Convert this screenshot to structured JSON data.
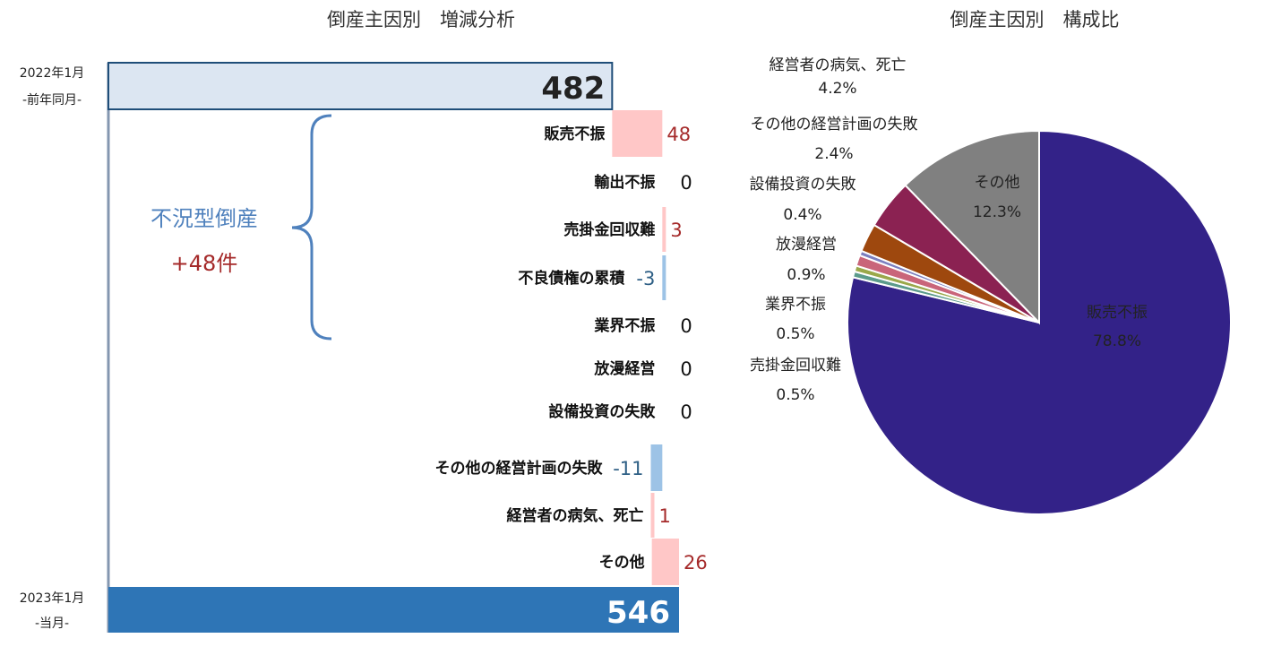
{
  "colors": {
    "start_fill": "#dce6f2",
    "start_stroke": "#1f4e79",
    "end_fill": "#2e75b6",
    "increase": "#ffc7c7",
    "decrease": "#9dc3e6",
    "pos_text": "#a52a2a",
    "neg_text": "#2e5f85",
    "zero_text": "#111111",
    "axis": "#8497b0",
    "bracket": "#4f81bd"
  },
  "chart_data": [
    {
      "type": "bar",
      "subtype": "waterfall",
      "title": "倒産主因別　増減分析",
      "start": {
        "label_line1": "2022年1月",
        "label_line2": "-前年同月-",
        "value": 482,
        "display": "482"
      },
      "end": {
        "label_line1": "2023年1月",
        "label_line2": "-当月-",
        "value": 546,
        "display": "546"
      },
      "xlim": [
        0,
        546
      ],
      "categories": [
        "販売不振",
        "輸出不振",
        "売掛金回収難",
        "不良債権の累積",
        "業界不振",
        "放漫経営",
        "設備投資の失敗",
        "その他の経営計画の失敗",
        "経営者の病気、死亡",
        "その他"
      ],
      "values": [
        48,
        0,
        3,
        -3,
        0,
        0,
        0,
        -11,
        1,
        26
      ],
      "value_labels": [
        "48",
        "0",
        "3",
        "-3",
        "0",
        "0",
        "0",
        "-11",
        "1",
        "26"
      ],
      "group": {
        "label": "不況型倒産",
        "value_label": "+48件",
        "spans": [
          "販売不振",
          "業界不振"
        ]
      }
    },
    {
      "type": "pie",
      "title": "倒産主因別　構成比",
      "slices": [
        {
          "label": "販売不振",
          "value": 78.8,
          "display": "78.8%",
          "color": "#332288"
        },
        {
          "label": "売掛金回収難",
          "value": 0.5,
          "display": "0.5%",
          "color": "#5b9b8b"
        },
        {
          "label": "業界不振",
          "value": 0.5,
          "display": "0.5%",
          "color": "#9aa84a"
        },
        {
          "label": "放漫経営",
          "value": 0.9,
          "display": "0.9%",
          "color": "#c9657a"
        },
        {
          "label": "設備投資の失敗",
          "value": 0.4,
          "display": "0.4%",
          "color": "#7b7fc0"
        },
        {
          "label": "その他の経営計画の失敗",
          "value": 2.4,
          "display": "2.4%",
          "color": "#9e480e"
        },
        {
          "label": "経営者の病気、死亡",
          "value": 4.2,
          "display": "4.2%",
          "color": "#8b2252"
        },
        {
          "label": "その他",
          "value": 12.3,
          "display": "12.3%",
          "color": "#808080"
        }
      ]
    }
  ]
}
